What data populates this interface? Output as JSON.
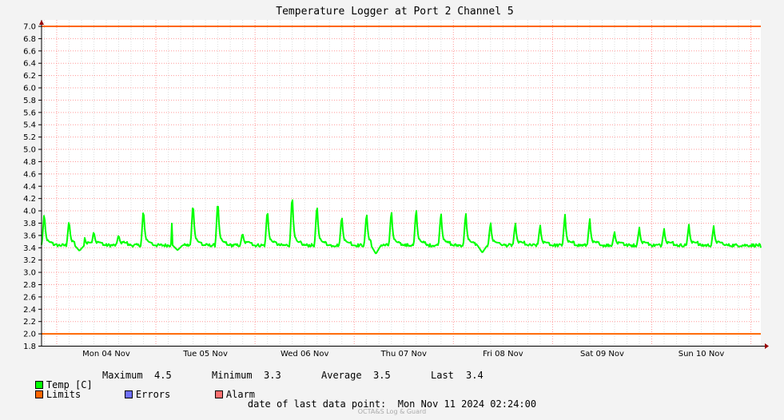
{
  "chart_data": {
    "type": "line",
    "title": "Temperature Logger at Port 2 Channel 5",
    "xlabel": "",
    "ylabel": "",
    "ylim": [
      1.8,
      7.0
    ],
    "yticks": [
      "7.0",
      "6.8",
      "6.6",
      "6.4",
      "6.2",
      "6.0",
      "5.8",
      "5.6",
      "5.4",
      "5.2",
      "5.0",
      "4.8",
      "4.6",
      "4.4",
      "4.2",
      "4.0",
      "3.8",
      "3.6",
      "3.4",
      "3.2",
      "3.0",
      "2.8",
      "2.6",
      "2.4",
      "2.2",
      "2.0",
      "1.8"
    ],
    "xrange": [
      "2024-11-03 20:20",
      "2024-11-11 02:24"
    ],
    "xticks": [
      {
        "label": "Mon 04 Nov",
        "at": "2024-11-04 12:00"
      },
      {
        "label": "Tue 05 Nov",
        "at": "2024-11-05 12:00"
      },
      {
        "label": "Wed 06 Nov",
        "at": "2024-11-06 12:00"
      },
      {
        "label": "Thu 07 Nov",
        "at": "2024-11-07 12:00"
      },
      {
        "label": "Fri 08 Nov",
        "at": "2024-11-08 12:00"
      },
      {
        "label": "Sat 09 Nov",
        "at": "2024-11-09 12:00"
      },
      {
        "label": "Sun 10 Nov",
        "at": "2024-11-10 12:00"
      }
    ],
    "grid": true,
    "limits": {
      "upper": 7.0,
      "lower": 2.0
    },
    "series": [
      {
        "name": "Temp [C]",
        "color": "#00ff00",
        "baseline": 3.44,
        "spikes": [
          {
            "at": "2024-11-03 21:00",
            "peak": 4.0
          },
          {
            "at": "2024-11-04 03:00",
            "peak": 3.87
          },
          {
            "at": "2024-11-04 06:45",
            "peak": 3.57
          },
          {
            "at": "2024-11-04 09:00",
            "peak": 3.68
          },
          {
            "at": "2024-11-04 15:00",
            "peak": 3.62
          },
          {
            "at": "2024-11-04 21:00",
            "peak": 4.07
          },
          {
            "at": "2024-11-05 04:15",
            "peak": 4.46
          },
          {
            "at": "2024-11-05 09:00",
            "peak": 4.18
          },
          {
            "at": "2024-11-05 15:00",
            "peak": 4.22
          },
          {
            "at": "2024-11-05 21:00",
            "peak": 3.65
          },
          {
            "at": "2024-11-06 03:00",
            "peak": 4.06
          },
          {
            "at": "2024-11-06 09:00",
            "peak": 4.32
          },
          {
            "at": "2024-11-06 15:00",
            "peak": 4.15
          },
          {
            "at": "2024-11-06 21:00",
            "peak": 3.95
          },
          {
            "at": "2024-11-07 03:00",
            "peak": 4.0
          },
          {
            "at": "2024-11-07 09:00",
            "peak": 4.04
          },
          {
            "at": "2024-11-07 15:00",
            "peak": 4.07
          },
          {
            "at": "2024-11-07 21:00",
            "peak": 4.0
          },
          {
            "at": "2024-11-08 03:00",
            "peak": 4.0
          },
          {
            "at": "2024-11-08 09:00",
            "peak": 3.83
          },
          {
            "at": "2024-11-08 15:00",
            "peak": 3.82
          },
          {
            "at": "2024-11-08 21:00",
            "peak": 3.78
          },
          {
            "at": "2024-11-09 03:00",
            "peak": 3.96
          },
          {
            "at": "2024-11-09 09:00",
            "peak": 3.88
          },
          {
            "at": "2024-11-09 15:00",
            "peak": 3.66
          },
          {
            "at": "2024-11-09 21:00",
            "peak": 3.73
          },
          {
            "at": "2024-11-10 03:00",
            "peak": 3.71
          },
          {
            "at": "2024-11-10 09:00",
            "peak": 3.78
          },
          {
            "at": "2024-11-10 15:00",
            "peak": 3.76
          }
        ],
        "dips": [
          {
            "at": "2024-11-04 05:30",
            "low": 3.35
          },
          {
            "at": "2024-11-05 05:15",
            "low": 3.36
          },
          {
            "at": "2024-11-07 05:15",
            "low": 3.3
          },
          {
            "at": "2024-11-08 07:00",
            "low": 3.32
          }
        ],
        "last": 3.4
      }
    ],
    "colors": {
      "series": "#00ff00",
      "limits": "#ff6600",
      "errors": "#7070ff",
      "alarm": "#ff7070",
      "grid_major": "#ff9999",
      "grid_minor": "#dddddd",
      "axis": "#000000",
      "arrow": "#990000",
      "plot_bg": "#ffffff"
    }
  },
  "legend": {
    "temp_label": "Temp [C]",
    "limits_label": "Limits",
    "errors_label": "Errors",
    "alarm_label": "Alarm"
  },
  "stats": {
    "maximum_label": "Maximum",
    "maximum_value": "4.5",
    "minimum_label": "Minimum",
    "minimum_value": "3.3",
    "average_label": "Average",
    "average_value": "3.5",
    "last_label": "Last",
    "last_value": "3.4"
  },
  "footer": {
    "last_point_text": "date of last data point:  Mon Nov 11 2024 02:24:00",
    "watermark": "OCTA&S Log & Guard"
  }
}
